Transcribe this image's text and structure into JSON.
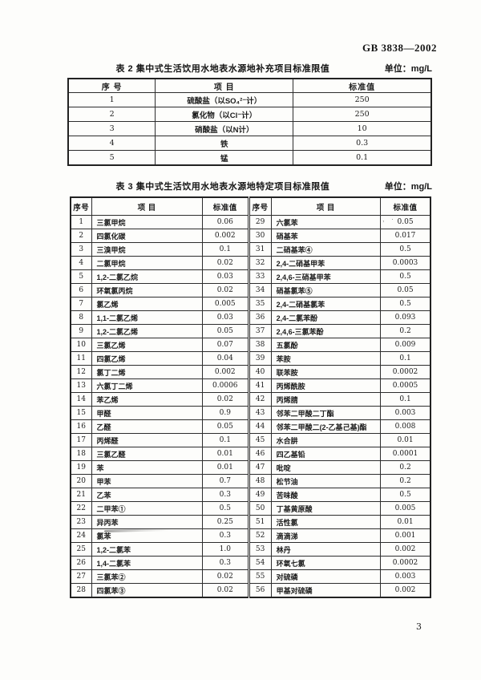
{
  "header": {
    "doc_number": "GB 3838—2002"
  },
  "table2": {
    "caption": "表 2  集中式生活饮用水地表水源地补充项目标准限值",
    "unit": "单位：mg/L",
    "headers": [
      "序  号",
      "项  目",
      "标准值"
    ],
    "rows": [
      [
        "1",
        "硫酸盐（以SO₄²⁻计）",
        "250"
      ],
      [
        "2",
        "氯化物（以Cl⁻计）",
        "250"
      ],
      [
        "3",
        "硝酸盐（以N计）",
        "10"
      ],
      [
        "4",
        "铁",
        "0.3"
      ],
      [
        "5",
        "锰",
        "0.1"
      ]
    ]
  },
  "table3": {
    "caption": "表 3  集中式生活饮用水地表水源地特定项目标准限值",
    "unit": "单位：mg/L",
    "headers": [
      "序号",
      "项  目",
      "标准值",
      "序号",
      "项  目",
      "标准值"
    ],
    "rows": [
      [
        "1",
        "三氯甲烷",
        "0.06",
        "29",
        "六氯苯",
        "0.05"
      ],
      [
        "2",
        "四氯化碳",
        "0.002",
        "30",
        "硝基苯",
        "0.017"
      ],
      [
        "3",
        "三溴甲烷",
        "0.1",
        "31",
        "二硝基苯④",
        "0.5"
      ],
      [
        "4",
        "二氯甲烷",
        "0.02",
        "32",
        "2,4-二硝基甲苯",
        "0.0003"
      ],
      [
        "5",
        "1,2-二氯乙烷",
        "0.03",
        "33",
        "2,4,6-三硝基甲苯",
        "0.5"
      ],
      [
        "6",
        "环氧氯丙烷",
        "0.02",
        "34",
        "硝基氯苯⑤",
        "0.05"
      ],
      [
        "7",
        "氯乙烯",
        "0.005",
        "35",
        "2,4-二硝基氯苯",
        "0.5"
      ],
      [
        "8",
        "1,1-二氯乙烯",
        "0.03",
        "36",
        "2,4-二氯苯酚",
        "0.093"
      ],
      [
        "9",
        "1,2-二氯乙烯",
        "0.05",
        "37",
        "2,4,6-三氯苯酚",
        "0.2"
      ],
      [
        "10",
        "三氯乙烯",
        "0.07",
        "38",
        "五氯酚",
        "0.009"
      ],
      [
        "11",
        "四氯乙烯",
        "0.04",
        "39",
        "苯胺",
        "0.1"
      ],
      [
        "12",
        "氯丁二烯",
        "0.002",
        "40",
        "联苯胺",
        "0.0002"
      ],
      [
        "13",
        "六氯丁二烯",
        "0.0006",
        "41",
        "丙烯酰胺",
        "0.0005"
      ],
      [
        "14",
        "苯乙烯",
        "0.02",
        "42",
        "丙烯腈",
        "0.1"
      ],
      [
        "15",
        "甲醛",
        "0.9",
        "43",
        "邻苯二甲酸二丁酯",
        "0.003"
      ],
      [
        "16",
        "乙醛",
        "0.05",
        "44",
        "邻苯二甲酸二(2-乙基己基)酯",
        "0.008"
      ],
      [
        "17",
        "丙烯醛",
        "0.1",
        "45",
        "水合肼",
        "0.01"
      ],
      [
        "18",
        "三氯乙醛",
        "0.01",
        "46",
        "四乙基铅",
        "0.0001"
      ],
      [
        "19",
        "苯",
        "0.01",
        "47",
        "吡啶",
        "0.2"
      ],
      [
        "20",
        "甲苯",
        "0.7",
        "48",
        "松节油",
        "0.2"
      ],
      [
        "21",
        "乙苯",
        "0.3",
        "49",
        "苦味酸",
        "0.5"
      ],
      [
        "22",
        "二甲苯①",
        "0.5",
        "50",
        "丁基黄原酸",
        "0.005"
      ],
      [
        "23",
        "异丙苯",
        "0.25",
        "51",
        "活性氯",
        "0.01"
      ],
      [
        "24",
        "氯苯",
        "0.3",
        "52",
        "滴滴涕",
        "0.001"
      ],
      [
        "25",
        "1,2-二氯苯",
        "1.0",
        "53",
        "林丹",
        "0.002"
      ],
      [
        "26",
        "1,4-二氯苯",
        "0.3",
        "54",
        "环氧七氯",
        "0.0002"
      ],
      [
        "27",
        "三氯苯②",
        "0.02",
        "55",
        "对硫磷",
        "0.003"
      ],
      [
        "28",
        "四氯苯③",
        "0.02",
        "56",
        "甲基对硫磷",
        "0.002"
      ]
    ]
  },
  "footer": {
    "page_number": "3"
  }
}
